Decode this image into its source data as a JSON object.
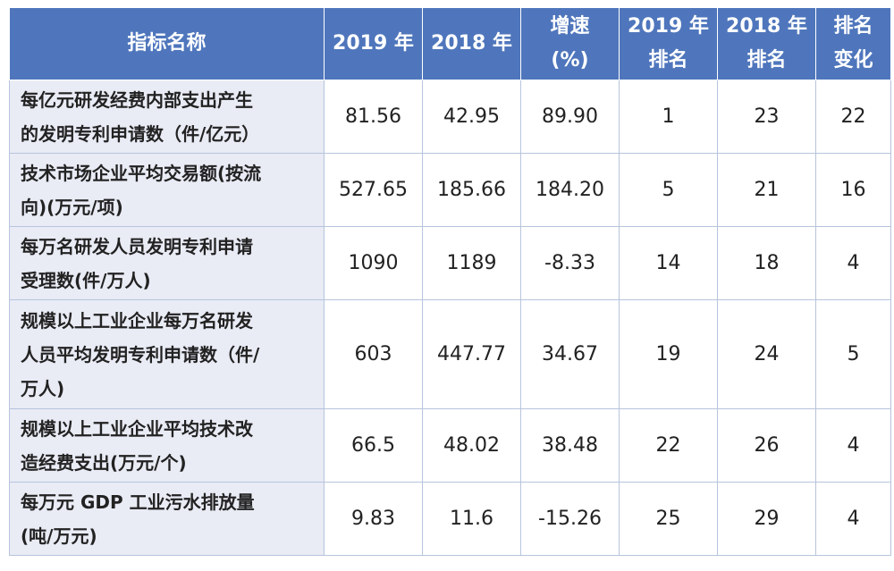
{
  "table": {
    "headers": {
      "name": "指标名称",
      "y2019": "2019 年",
      "y2018": "2018 年",
      "growth": [
        "增速",
        "(%)"
      ],
      "rank2019": [
        "2019 年",
        "排名"
      ],
      "rank2018": [
        "2018 年",
        "排名"
      ],
      "change": [
        "排名",
        "变化"
      ]
    },
    "rows": [
      {
        "name": [
          "每亿元研发经费内部支出产生",
          "的发明专利申请数（件/亿元）"
        ],
        "y2019": "81.56",
        "y2018": "42.95",
        "growth": "89.90",
        "rank2019": "1",
        "rank2018": "23",
        "change": "22"
      },
      {
        "name": [
          "技术市场企业平均交易额(按流",
          "向)(万元/项)"
        ],
        "y2019": "527.65",
        "y2018": "185.66",
        "growth": "184.20",
        "rank2019": "5",
        "rank2018": "21",
        "change": "16"
      },
      {
        "name": [
          "每万名研发人员发明专利申请",
          "受理数(件/万人)"
        ],
        "y2019": "1090",
        "y2018": "1189",
        "growth": "-8.33",
        "rank2019": "14",
        "rank2018": "18",
        "change": "4"
      },
      {
        "name": [
          "规模以上工业企业每万名研发",
          "人员平均发明专利申请数（件/",
          "万人)"
        ],
        "y2019": "603",
        "y2018": "447.77",
        "growth": "34.67",
        "rank2019": "19",
        "rank2018": "24",
        "change": "5"
      },
      {
        "name": [
          "规模以上工业企业平均技术改",
          "造经费支出(万元/个)"
        ],
        "y2019": "66.5",
        "y2018": "48.02",
        "growth": "38.48",
        "rank2019": "22",
        "rank2018": "26",
        "change": "4"
      },
      {
        "name": [
          "每万元 GDP 工业污水排放量",
          "(吨/万元)"
        ],
        "y2019": "9.83",
        "y2018": "11.6",
        "growth": "-15.26",
        "rank2019": "25",
        "rank2018": "29",
        "change": "4"
      }
    ]
  }
}
